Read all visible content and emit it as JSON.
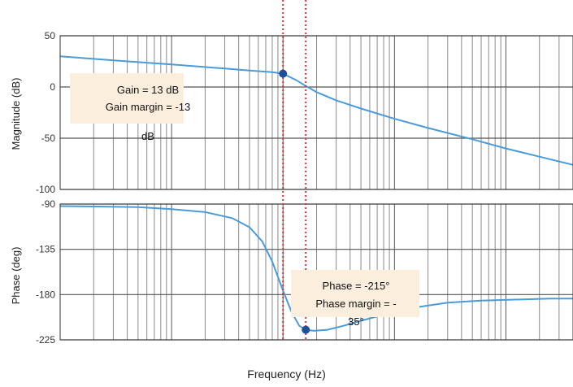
{
  "chart_data": [
    {
      "type": "line",
      "panel": "magnitude",
      "title": "",
      "xlabel": "",
      "ylabel": "Magnitude (dB)",
      "xscale": "log",
      "ylim": [
        -100,
        50
      ],
      "yticks": [
        50,
        0,
        -50,
        -100
      ],
      "grid": true,
      "series": [
        {
          "color": "#4a9bd8",
          "x": [
            0.01,
            0.03,
            0.1,
            0.3,
            0.5,
            0.8,
            1.0,
            1.3,
            1.6,
            2.0,
            3.0,
            5.0,
            10,
            20,
            50,
            100,
            200,
            400
          ],
          "y": [
            30,
            26,
            22,
            18,
            16,
            14.5,
            13,
            7,
            1,
            -5,
            -13,
            -21,
            -31,
            -40,
            -51,
            -60,
            -68,
            -76
          ]
        }
      ],
      "markers": [
        {
          "x": 1.0,
          "y": 13
        }
      ],
      "vlines": [
        1.0,
        1.6
      ],
      "annotations": [
        "Gain = 13 dB",
        "Gain margin = -13",
        "dB"
      ]
    },
    {
      "type": "line",
      "panel": "phase",
      "title": "",
      "xlabel": "Frequency  (Hz)",
      "ylabel": "Phase (deg)",
      "xscale": "log",
      "ylim": [
        -225,
        -90
      ],
      "yticks": [
        -90,
        -135,
        -180,
        -225
      ],
      "grid": true,
      "series": [
        {
          "color": "#4a9bd8",
          "x": [
            0.01,
            0.05,
            0.1,
            0.2,
            0.35,
            0.5,
            0.65,
            0.8,
            1.0,
            1.2,
            1.4,
            1.6,
            1.9,
            2.5,
            3.5,
            5,
            8,
            15,
            30,
            60,
            120,
            250,
            400
          ],
          "y": [
            -92,
            -93,
            -95,
            -98,
            -104,
            -113,
            -127,
            -147,
            -176,
            -198,
            -211,
            -215,
            -216,
            -215,
            -211,
            -206,
            -200,
            -193,
            -188,
            -186,
            -185,
            -184,
            -184
          ]
        }
      ],
      "markers": [
        {
          "x": 1.6,
          "y": -215
        }
      ],
      "vlines": [
        1.0,
        1.6
      ],
      "annotations": [
        "Phase = -215°",
        "Phase margin = -",
        "35°"
      ]
    }
  ],
  "colors": {
    "curve": "#4a9bd8",
    "cursor": "#e03030",
    "marker": "#1f4e9c",
    "annotation_bg": "#fbeedd"
  }
}
